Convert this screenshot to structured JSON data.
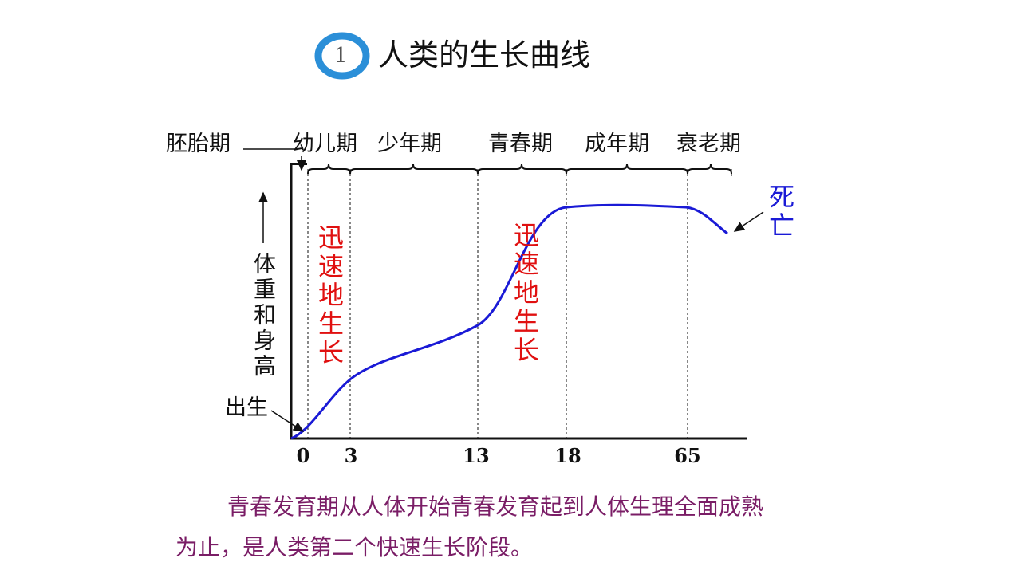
{
  "header": {
    "badge": "1",
    "title": "人类的生长曲线"
  },
  "stages": [
    "胚胎期",
    "幼儿期",
    "少年期",
    "青春期",
    "成年期",
    "衰老期"
  ],
  "y_axis_label": "体重和身高",
  "birth_label": "出生",
  "growth_labels": [
    "迅速地生长",
    "迅速地生长"
  ],
  "death_label": "死亡",
  "x_ticks": [
    "0",
    "3",
    "13",
    "18",
    "65"
  ],
  "paragraph": [
    "青春发育期从人体开始青春发育起到人体生理全面成熟",
    "为止，是人类第二个快速生长阶段。"
  ]
}
